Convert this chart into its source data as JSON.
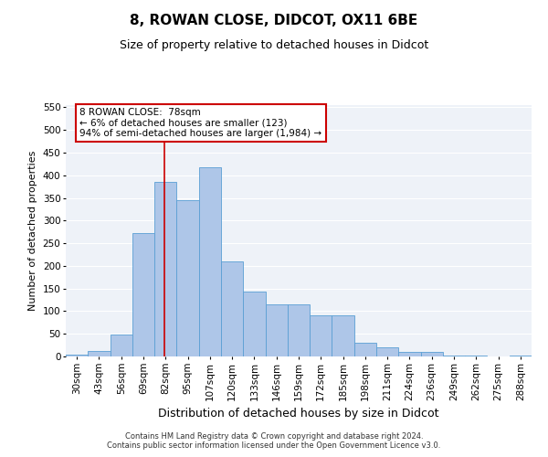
{
  "title": "8, ROWAN CLOSE, DIDCOT, OX11 6BE",
  "subtitle": "Size of property relative to detached houses in Didcot",
  "xlabel": "Distribution of detached houses by size in Didcot",
  "ylabel": "Number of detached properties",
  "footnote": "Contains HM Land Registry data © Crown copyright and database right 2024.\nContains public sector information licensed under the Open Government Licence v3.0.",
  "categories": [
    "30sqm",
    "43sqm",
    "56sqm",
    "69sqm",
    "82sqm",
    "95sqm",
    "107sqm",
    "120sqm",
    "133sqm",
    "146sqm",
    "159sqm",
    "172sqm",
    "185sqm",
    "198sqm",
    "211sqm",
    "224sqm",
    "236sqm",
    "249sqm",
    "262sqm",
    "275sqm",
    "288sqm"
  ],
  "values": [
    5,
    12,
    48,
    272,
    385,
    345,
    418,
    210,
    143,
    115,
    115,
    90,
    90,
    30,
    20,
    10,
    10,
    3,
    3,
    0,
    3
  ],
  "bar_color": "#aec6e8",
  "bar_edge_color": "#5a9fd4",
  "vline_x": 3.95,
  "vline_color": "#cc0000",
  "annotation_text": "8 ROWAN CLOSE:  78sqm\n← 6% of detached houses are smaller (123)\n94% of semi-detached houses are larger (1,984) →",
  "annotation_box_color": "#ffffff",
  "annotation_box_edge": "#cc0000",
  "ylim": [
    0,
    555
  ],
  "yticks": [
    0,
    50,
    100,
    150,
    200,
    250,
    300,
    350,
    400,
    450,
    500,
    550
  ],
  "bg_color": "#eef2f8",
  "grid_color": "#ffffff",
  "title_fontsize": 11,
  "subtitle_fontsize": 9,
  "axis_label_fontsize": 9,
  "ylabel_fontsize": 8,
  "tick_fontsize": 7.5,
  "footnote_fontsize": 6
}
